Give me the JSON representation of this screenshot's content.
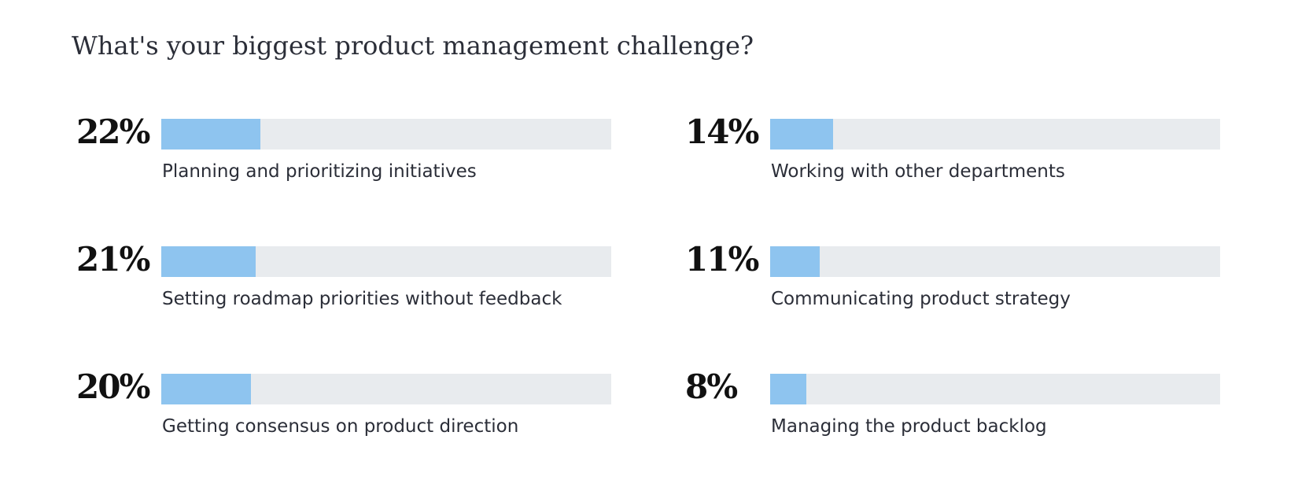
{
  "chart_data": {
    "type": "bar",
    "title": "What's your biggest product management challenge?",
    "xlabel": "",
    "ylabel": "",
    "xlim": [
      0,
      100
    ],
    "grid": false,
    "legend": "none",
    "colors": {
      "fill": "#8ec4ef",
      "track": "#e8ebee",
      "text": "#2b2e38"
    },
    "items": [
      {
        "label": "Planning and prioritizing initiatives",
        "value": 22,
        "value_label": "22%"
      },
      {
        "label": "Setting roadmap priorities without feedback",
        "value": 21,
        "value_label": "21%"
      },
      {
        "label": "Getting consensus on product direction",
        "value": 20,
        "value_label": "20%"
      },
      {
        "label": "Working with other departments",
        "value": 14,
        "value_label": "14%"
      },
      {
        "label": "Communicating product strategy",
        "value": 11,
        "value_label": "11%"
      },
      {
        "label": "Managing the product backlog",
        "value": 8,
        "value_label": "8%"
      }
    ]
  }
}
